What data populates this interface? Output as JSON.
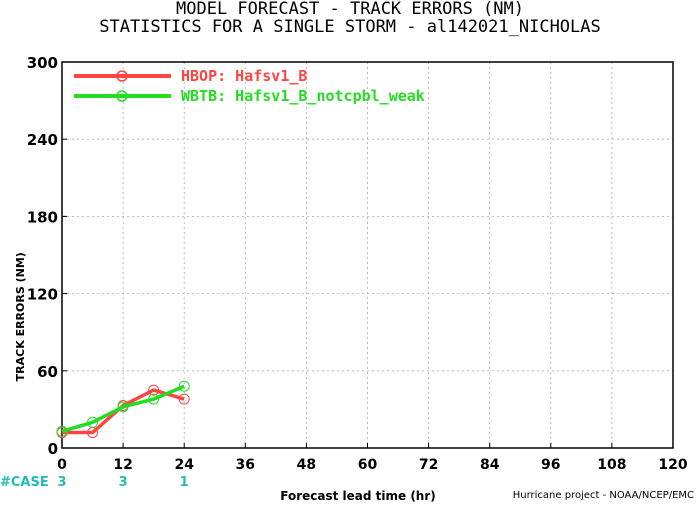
{
  "title_line1": "MODEL FORECAST - TRACK ERRORS (NM)",
  "title_line2": "STATISTICS FOR A SINGLE STORM - al142021_NICHOLAS",
  "footer": "Hurricane project - NOAA/NCEP/EMC",
  "case_label": "#CASE",
  "chart_data": {
    "type": "line",
    "title": "MODEL FORECAST - TRACK ERRORS (NM)",
    "subtitle": "STATISTICS FOR A SINGLE STORM - al142021_NICHOLAS",
    "xlabel": "Forecast lead time (hr)",
    "ylabel": "TRACK ERRORS (NM)",
    "xlim": [
      0,
      120
    ],
    "ylim": [
      0,
      300
    ],
    "xticks": [
      0,
      12,
      24,
      36,
      48,
      60,
      72,
      84,
      96,
      108,
      120
    ],
    "yticks": [
      0,
      60,
      120,
      180,
      240,
      300
    ],
    "grid": true,
    "legend_position": "top-left",
    "series": [
      {
        "name": "HBOP: Hafsv1_B",
        "color": "#ff4444",
        "x": [
          0,
          6,
          12,
          18,
          24
        ],
        "y": [
          12,
          12,
          33,
          45,
          38
        ]
      },
      {
        "name": "WBTB: Hafsv1_B_notcpbl_weak",
        "color": "#22dd22",
        "x": [
          0,
          6,
          12,
          18,
          24
        ],
        "y": [
          13,
          20,
          32,
          38,
          48
        ]
      }
    ],
    "case_counts": [
      {
        "x": 0,
        "label": "3"
      },
      {
        "x": 12,
        "label": "3"
      },
      {
        "x": 24,
        "label": "1"
      }
    ],
    "case_color": "#22bbbb"
  }
}
